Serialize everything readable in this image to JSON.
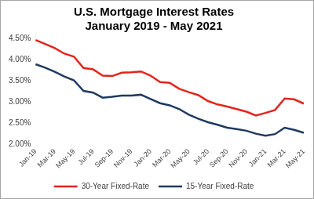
{
  "chart_data": {
    "type": "line",
    "title": "U.S. Mortgage Interest Rates",
    "subtitle": "January 2019 - May 2021",
    "categories": [
      "Jan-19",
      null,
      "Mar-19",
      null,
      "May-19",
      null,
      "Jul-19",
      null,
      "Sep-19",
      null,
      "Nov-19",
      null,
      "Jan-20",
      null,
      "Mar-20",
      null,
      "May-20",
      null,
      "Jul-20",
      null,
      "Sep-20",
      null,
      "Nov-20",
      null,
      "Jan-21",
      null,
      "Mar-21",
      null,
      "May-21"
    ],
    "series": [
      {
        "name": "30-Year Fixed-Rate",
        "color": "#e3241b",
        "values": [
          4.46,
          4.37,
          4.27,
          4.14,
          4.07,
          3.8,
          3.77,
          3.62,
          3.61,
          3.69,
          3.7,
          3.72,
          3.62,
          3.47,
          3.45,
          3.31,
          3.23,
          3.16,
          3.02,
          2.94,
          2.89,
          2.83,
          2.77,
          2.68,
          2.74,
          2.81,
          3.08,
          3.06,
          2.96
        ]
      },
      {
        "name": "15-Year Fixed-Rate",
        "color": "#1f3a5f",
        "values": [
          3.89,
          3.81,
          3.71,
          3.6,
          3.51,
          3.26,
          3.22,
          3.1,
          3.12,
          3.15,
          3.15,
          3.17,
          3.07,
          2.97,
          2.92,
          2.83,
          2.7,
          2.6,
          2.52,
          2.46,
          2.39,
          2.36,
          2.32,
          2.25,
          2.2,
          2.24,
          2.39,
          2.34,
          2.27
        ]
      }
    ],
    "ylim": [
      2,
      4.5
    ],
    "yticks": [
      {
        "value": 2,
        "label": "2.00%"
      },
      {
        "value": 2.5,
        "label": "2.50%"
      },
      {
        "value": 3,
        "label": "3.00%"
      },
      {
        "value": 3.5,
        "label": "3.50%"
      },
      {
        "value": 4,
        "label": "4.00%"
      },
      {
        "value": 4.5,
        "label": "4.50%"
      }
    ],
    "grid": false,
    "legend": "bottom"
  }
}
